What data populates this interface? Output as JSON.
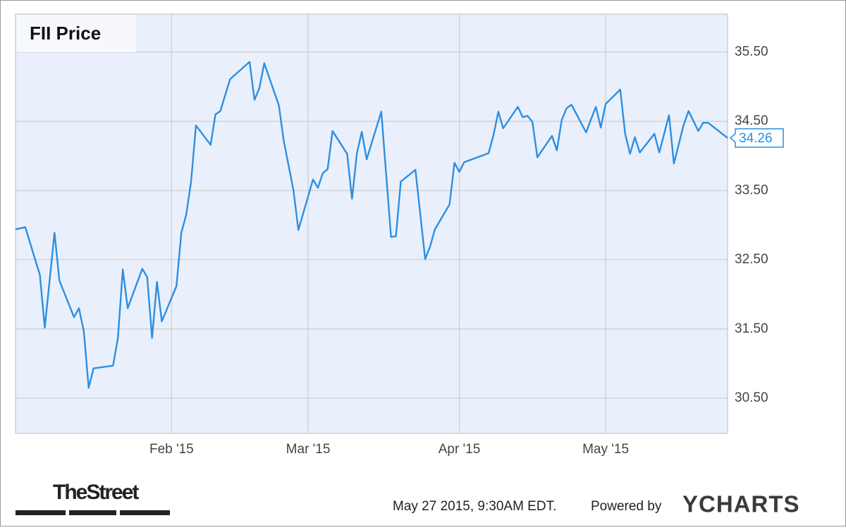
{
  "chart_data": {
    "type": "line",
    "title": "FII Price",
    "color": "#2b8fe3",
    "grid": true,
    "x": [
      0,
      2,
      5,
      6,
      8,
      9,
      12,
      13,
      14,
      15,
      16,
      20,
      21,
      22,
      23,
      26,
      27,
      28,
      29,
      30,
      33,
      34,
      35,
      36,
      37,
      40,
      41,
      42,
      44,
      48,
      49,
      50,
      51,
      54,
      55,
      57,
      58,
      61,
      62,
      63,
      64,
      65,
      68,
      69,
      70,
      71,
      72,
      75,
      77,
      78,
      79,
      82,
      84,
      85,
      86,
      89,
      90,
      91,
      92,
      97,
      98,
      99,
      100,
      103,
      104,
      105,
      106,
      107,
      110,
      111,
      112,
      113,
      114,
      117,
      118,
      119,
      120,
      121,
      124,
      125,
      126,
      127,
      128,
      131,
      132,
      134,
      135,
      137,
      138,
      140,
      141,
      142,
      146
    ],
    "values": [
      32.94,
      32.97,
      32.28,
      31.52,
      32.89,
      32.2,
      31.67,
      31.8,
      31.47,
      30.65,
      30.93,
      30.97,
      31.37,
      32.36,
      31.8,
      32.37,
      32.25,
      31.37,
      32.18,
      31.61,
      32.12,
      32.89,
      33.15,
      33.63,
      34.44,
      34.16,
      34.6,
      34.65,
      35.11,
      35.36,
      34.81,
      34.98,
      35.34,
      34.73,
      34.22,
      33.5,
      32.93,
      33.66,
      33.54,
      33.75,
      33.81,
      34.36,
      34.03,
      33.38,
      34.04,
      34.35,
      33.95,
      34.64,
      32.83,
      32.84,
      33.63,
      33.8,
      32.51,
      32.69,
      32.94,
      33.3,
      33.9,
      33.77,
      33.91,
      34.04,
      34.3,
      34.64,
      34.4,
      34.71,
      34.56,
      34.58,
      34.49,
      33.98,
      34.29,
      34.08,
      34.52,
      34.69,
      34.74,
      34.34,
      34.53,
      34.71,
      34.41,
      34.75,
      34.96,
      34.32,
      34.03,
      34.27,
      34.05,
      34.32,
      34.05,
      34.59,
      33.89,
      34.45,
      34.65,
      34.36,
      34.48,
      34.48,
      34.26
    ],
    "xlim": [
      0,
      146
    ],
    "xticks": [
      {
        "value": 32,
        "label": "Feb '15"
      },
      {
        "value": 60,
        "label": "Mar '15"
      },
      {
        "value": 91,
        "label": "Apr '15"
      },
      {
        "value": 121,
        "label": "May '15"
      }
    ],
    "ylim": [
      29.99,
      36.05
    ],
    "yticks": [
      {
        "value": 30.5,
        "label": "30.50"
      },
      {
        "value": 31.5,
        "label": "31.50"
      },
      {
        "value": 32.5,
        "label": "32.50"
      },
      {
        "value": 33.5,
        "label": "33.50"
      },
      {
        "value": 34.5,
        "label": "34.50"
      },
      {
        "value": 35.5,
        "label": "35.50"
      }
    ]
  },
  "footer": {
    "brand": "TheStreet",
    "timestamp": "May 27 2015, 9:30AM EDT.",
    "powered": "Powered by",
    "logo": "YCHARTS"
  }
}
